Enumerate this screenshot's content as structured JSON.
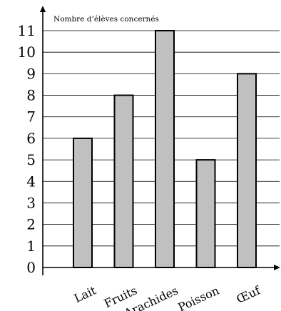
{
  "chart_data": {
    "type": "bar",
    "title": "",
    "ylabel": "Nombre d’élèves concernés",
    "xlabel": "",
    "categories": [
      "Lait",
      "Fruits",
      "Arachides",
      "Poisson",
      "Œuf"
    ],
    "values": [
      6,
      8,
      11,
      5,
      9
    ],
    "ylim": [
      0,
      11
    ],
    "yticks": [
      0,
      1,
      2,
      3,
      4,
      5,
      6,
      7,
      8,
      9,
      10,
      11
    ],
    "grid": true,
    "bar_color": "#c0c0c0",
    "edge_color": "#000000"
  }
}
